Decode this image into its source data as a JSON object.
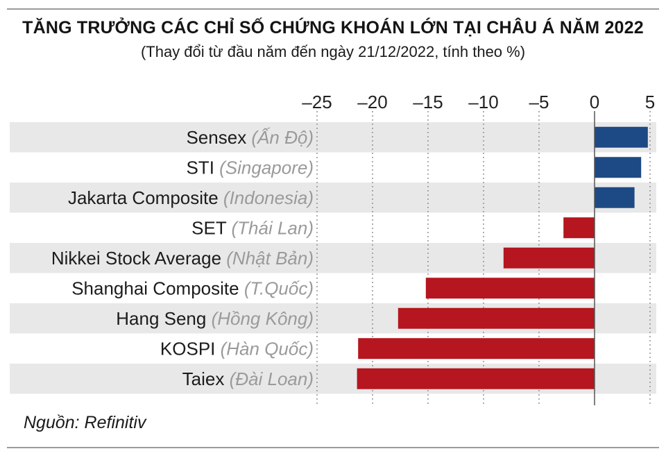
{
  "title": "TĂNG TRƯỞNG CÁC CHỈ SỐ CHỨNG KHOÁN LỚN TẠI CHÂU Á NĂM 2022",
  "subtitle": "(Thay đổi từ đầu năm đến ngày 21/12/2022, tính theo %)",
  "source": "Nguồn: Refinitiv",
  "colors": {
    "positive": "#1d4a85",
    "negative": "#b5161f",
    "band": "#e8e8e8"
  },
  "chart_data": {
    "type": "bar",
    "orientation": "horizontal",
    "title": "TĂNG TRƯỞNG CÁC CHỈ SỐ CHỨNG KHOÁN LỚN TẠI CHÂU Á NĂM 2022",
    "subtitle": "(Thay đổi từ đầu năm đến ngày 21/12/2022, tính theo %)",
    "categories": [
      {
        "name": "Sensex",
        "country": "(Ấn Độ)"
      },
      {
        "name": "STI",
        "country": "(Singapore)"
      },
      {
        "name": "Jakarta Composite",
        "country": "(Indonesia)"
      },
      {
        "name": "SET",
        "country": "(Thái Lan)"
      },
      {
        "name": "Nikkei Stock Average",
        "country": "(Nhật Bản)"
      },
      {
        "name": "Shanghai Composite",
        "country": "(T.Quốc)"
      },
      {
        "name": "Hang Seng",
        "country": "(Hồng Kông)"
      },
      {
        "name": "KOSPI",
        "country": "(Hàn Quốc)"
      },
      {
        "name": "Taiex",
        "country": "(Đài Loan)"
      }
    ],
    "values": [
      4.8,
      4.2,
      3.6,
      -2.8,
      -8.2,
      -15.2,
      -17.7,
      -21.3,
      -21.4
    ],
    "xlim": [
      -27,
      5
    ],
    "xticks": [
      -25,
      -20,
      -15,
      -10,
      -5,
      0,
      5
    ],
    "xtick_labels": [
      "–25",
      "–20",
      "–15",
      "–10",
      "–5",
      "0",
      "5"
    ],
    "grid": "vertical dotted",
    "xlabel": "",
    "ylabel": ""
  }
}
